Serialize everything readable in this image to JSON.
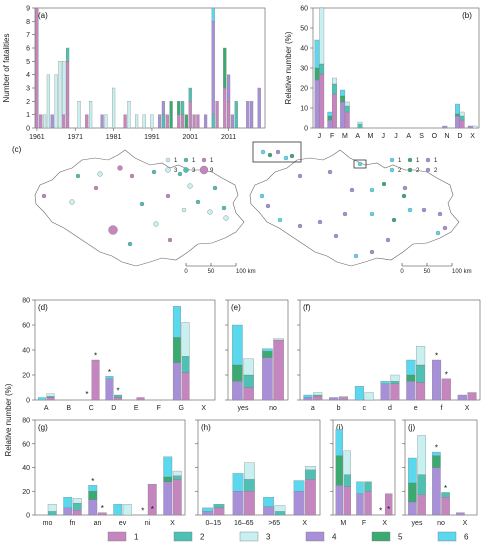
{
  "colors": {
    "1": "#c586c0",
    "2": "#4fc1b4",
    "3": "#c9f0f0",
    "4": "#a890d8",
    "5": "#3aaa70",
    "6": "#5ad8ee"
  },
  "chart_data": [
    {
      "id": "a",
      "type": "bar",
      "panel_label": "(a)",
      "ylabel": "Number of fatalities",
      "ylim": [
        0,
        9
      ],
      "yticks": [
        "0",
        "1",
        "2",
        "3",
        "4",
        "5",
        "6",
        "7",
        "8",
        "9"
      ],
      "xtick_labels": [
        "1961",
        "1971",
        "1981",
        "1991",
        "2001",
        "2011"
      ],
      "xtick_years": [
        1961,
        1971,
        1981,
        1991,
        2001,
        2011
      ],
      "stack_order": [
        "1",
        "2",
        "3",
        "4",
        "5",
        "6"
      ],
      "bars": [
        {
          "year": 1961,
          "1": 9
        },
        {
          "year": 1962,
          "1": 1
        },
        {
          "year": 1963,
          "3": 1
        },
        {
          "year": 1964,
          "3": 4
        },
        {
          "year": 1965,
          "4": 1
        },
        {
          "year": 1966,
          "3": 4
        },
        {
          "year": 1967,
          "3": 5
        },
        {
          "year": 1968,
          "1": 1,
          "3": 4
        },
        {
          "year": 1969,
          "1": 5,
          "2": 1
        },
        {
          "year": 1972,
          "3": 2
        },
        {
          "year": 1974,
          "1": 1
        },
        {
          "year": 1975,
          "3": 2
        },
        {
          "year": 1978,
          "4": 1
        },
        {
          "year": 1979,
          "3": 1
        },
        {
          "year": 1981,
          "3": 3
        },
        {
          "year": 1984,
          "1": 1
        },
        {
          "year": 1985,
          "3": 2
        },
        {
          "year": 1987,
          "3": 1
        },
        {
          "year": 1989,
          "3": 1
        },
        {
          "year": 1991,
          "3": 1
        },
        {
          "year": 1993,
          "4": 1
        },
        {
          "year": 1994,
          "4": 1,
          "2": 1
        },
        {
          "year": 1995,
          "1": 1
        },
        {
          "year": 1996,
          "5": 2
        },
        {
          "year": 1998,
          "1": 1,
          "5": 1
        },
        {
          "year": 1999,
          "1": 1,
          "2": 1
        },
        {
          "year": 2000,
          "5": 1
        },
        {
          "year": 2001,
          "1": 2,
          "2": 1
        },
        {
          "year": 2002,
          "1": 1
        },
        {
          "year": 2003,
          "1": 1
        },
        {
          "year": 2005,
          "4": 1
        },
        {
          "year": 2007,
          "4": 7,
          "2": 1,
          "6": 1
        },
        {
          "year": 2008,
          "1": 2
        },
        {
          "year": 2010,
          "1": 3,
          "5": 3
        },
        {
          "year": 2011,
          "1": 2,
          "4": 2
        },
        {
          "year": 2012,
          "4": 1
        },
        {
          "year": 2013,
          "2": 2
        },
        {
          "year": 2016,
          "4": 2
        },
        {
          "year": 2017,
          "4": 2
        },
        {
          "year": 2019,
          "4": 3
        }
      ]
    },
    {
      "id": "b",
      "type": "bar",
      "panel_label": "(b)",
      "ylabel": "Relative number (%)",
      "ylim": [
        0,
        60
      ],
      "yticks": [
        "0",
        "10",
        "20",
        "30",
        "40",
        "50",
        "60"
      ],
      "stack_order": [
        "4",
        "5",
        "6",
        "1",
        "2",
        "3"
      ],
      "categories": [
        "J",
        "F",
        "M",
        "A",
        "M",
        "J",
        "J",
        "A",
        "S",
        "O",
        "N",
        "D",
        "X"
      ],
      "groups": [
        [
          {
            "4": 24,
            "5": 6,
            "6": 14
          },
          {
            "1": 27,
            "2": 5,
            "3": 32
          }
        ],
        [
          {
            "4": 4,
            "5": 2,
            "6": 2
          },
          {
            "1": 17,
            "2": 5,
            "3": 3
          }
        ],
        [
          {
            "4": 13,
            "5": 3,
            "6": 3
          },
          {
            "1": 8,
            "2": 3,
            "3": 2
          }
        ],
        [
          {
            "4": 0,
            "5": 0,
            "6": 0
          },
          {
            "1": 0,
            "2": 2,
            "3": 1
          }
        ],
        [
          {
            "4": 0,
            "5": 0,
            "6": 0
          },
          {
            "1": 0,
            "2": 0,
            "3": 0
          }
        ],
        [
          {
            "4": 0,
            "5": 0,
            "6": 0
          },
          {
            "1": 0,
            "2": 0,
            "3": 0
          }
        ],
        [
          {
            "4": 0,
            "5": 0,
            "6": 0
          },
          {
            "1": 0,
            "2": 0,
            "3": 0
          }
        ],
        [
          {
            "4": 0,
            "5": 0,
            "6": 0
          },
          {
            "1": 0,
            "2": 0,
            "3": 0
          }
        ],
        [
          {
            "4": 0,
            "5": 0,
            "6": 0
          },
          {
            "1": 0,
            "2": 0,
            "3": 0
          }
        ],
        [
          {
            "4": 0,
            "5": 0,
            "6": 0
          },
          {
            "1": 0,
            "2": 0,
            "3": 0
          }
        ],
        [
          {
            "4": 1,
            "5": 0,
            "6": 0
          },
          {
            "1": 0,
            "2": 0,
            "3": 0
          }
        ],
        [
          {
            "4": 6,
            "5": 1,
            "6": 5
          },
          {
            "1": 4,
            "2": 2,
            "3": 2
          }
        ],
        [
          {
            "4": 1,
            "5": 0,
            "6": 0
          },
          {
            "1": 0,
            "2": 0,
            "3": 1
          }
        ]
      ]
    },
    {
      "id": "d",
      "type": "bar",
      "panel_label": "(d)",
      "ylim": [
        0,
        80
      ],
      "stack_order": [
        "4",
        "5",
        "6",
        "1",
        "2",
        "3"
      ],
      "categories": [
        "A",
        "B",
        "C",
        "D",
        "E",
        "F",
        "G",
        "X"
      ],
      "groups": [
        [
          {
            "4": 0,
            "5": 0,
            "6": 2
          },
          {
            "1": 2,
            "2": 1,
            "3": 2
          }
        ],
        [
          {
            "4": 0,
            "5": 0,
            "6": 0
          },
          {
            "1": 0,
            "2": 0,
            "3": 0
          }
        ],
        [
          {
            "4": 0,
            "5": 0,
            "6": 0
          },
          {
            "1": 32,
            "2": 0,
            "3": 0
          }
        ],
        [
          {
            "4": 17,
            "5": 0,
            "6": 2
          },
          {
            "1": 2,
            "2": 2,
            "3": 0
          }
        ],
        [
          {
            "4": 0,
            "5": 0,
            "6": 0
          },
          {
            "1": 2,
            "2": 0,
            "3": 0
          }
        ],
        [
          {
            "4": 0,
            "5": 0,
            "6": 0
          },
          {
            "1": 0,
            "2": 0,
            "3": 0
          }
        ],
        [
          {
            "4": 30,
            "5": 20,
            "6": 25
          },
          {
            "1": 22,
            "2": 13,
            "3": 27
          }
        ],
        [
          {
            "4": 0,
            "5": 0,
            "6": 0
          },
          {
            "1": 0,
            "2": 0,
            "3": 0
          }
        ]
      ],
      "stars": [
        [
          2,
          1
        ],
        [
          3,
          0
        ],
        [
          3,
          1
        ]
      ],
      "empty_stars": [
        [
          2,
          0
        ]
      ]
    },
    {
      "id": "e",
      "type": "bar",
      "panel_label": "(e)",
      "ylim": [
        0,
        80
      ],
      "stack_order": [
        "4",
        "5",
        "6",
        "1",
        "2",
        "3"
      ],
      "categories": [
        "yes",
        "no"
      ],
      "groups": [
        [
          {
            "4": 15,
            "5": 13,
            "6": 32
          },
          {
            "1": 10,
            "2": 10,
            "3": 13
          }
        ],
        [
          {
            "4": 34,
            "5": 5,
            "6": 2
          },
          {
            "1": 48,
            "2": 0,
            "3": 1
          }
        ]
      ]
    },
    {
      "id": "f",
      "type": "bar",
      "panel_label": "(f)",
      "ylim": [
        0,
        80
      ],
      "stack_order": [
        "4",
        "5",
        "6",
        "1",
        "2",
        "3"
      ],
      "categories": [
        "a",
        "b",
        "c",
        "d",
        "e",
        "f",
        "X"
      ],
      "groups": [
        [
          {
            "4": 2,
            "5": 0,
            "6": 2
          },
          {
            "1": 3,
            "2": 1,
            "3": 2
          }
        ],
        [
          {
            "4": 2,
            "5": 0,
            "6": 0
          },
          {
            "1": 2,
            "2": 0,
            "3": 1
          }
        ],
        [
          {
            "4": 0,
            "5": 0,
            "6": 11
          },
          {
            "1": 0,
            "2": 0,
            "3": 6
          }
        ],
        [
          {
            "4": 13,
            "5": 0,
            "6": 2
          },
          {
            "1": 13,
            "2": 2,
            "3": 5
          }
        ],
        [
          {
            "4": 15,
            "5": 5,
            "6": 12
          },
          {
            "1": 14,
            "2": 14,
            "3": 15
          }
        ],
        [
          {
            "4": 32,
            "5": 0,
            "6": 0
          },
          {
            "1": 17,
            "2": 0,
            "3": 0
          }
        ],
        [
          {
            "4": 4,
            "5": 0,
            "6": 0
          },
          {
            "1": 6,
            "2": 0,
            "3": 0
          }
        ]
      ],
      "stars": [
        [
          5,
          0
        ],
        [
          5,
          1
        ]
      ]
    },
    {
      "id": "g",
      "type": "bar",
      "panel_label": "(g)",
      "ylim": [
        0,
        80
      ],
      "stack_order": [
        "4",
        "5",
        "6",
        "1",
        "2",
        "3"
      ],
      "categories": [
        "mo",
        "fn",
        "an",
        "ev",
        "ni",
        "X"
      ],
      "groups": [
        [
          {
            "4": 0,
            "5": 0,
            "6": 0
          },
          {
            "1": 0,
            "2": 3,
            "3": 6
          }
        ],
        [
          {
            "4": 6,
            "5": 0,
            "6": 9
          },
          {
            "1": 4,
            "2": 6,
            "3": 4
          }
        ],
        [
          {
            "4": 13,
            "5": 7,
            "6": 5
          },
          {
            "1": 2,
            "2": 0,
            "3": 0
          }
        ],
        [
          {
            "4": 0,
            "5": 0,
            "6": 9
          },
          {
            "1": 0,
            "2": 0,
            "3": 9
          }
        ],
        [
          {
            "4": 0,
            "5": 0,
            "6": 0
          },
          {
            "1": 26,
            "2": 0,
            "3": 0
          }
        ],
        [
          {
            "4": 28,
            "5": 4,
            "6": 17
          },
          {
            "1": 30,
            "2": 3,
            "3": 4
          }
        ]
      ],
      "stars": [
        [
          2,
          0
        ],
        [
          2,
          1
        ],
        [
          4,
          0
        ]
      ],
      "empty_stars": [
        [
          4,
          1
        ]
      ]
    },
    {
      "id": "h",
      "type": "bar",
      "panel_label": "(h)",
      "ylim": [
        0,
        80
      ],
      "stack_order": [
        "4",
        "5",
        "6",
        "1",
        "2",
        "3"
      ],
      "categories": [
        "0–15",
        "16–65",
        ">65",
        "X"
      ],
      "groups": [
        [
          {
            "4": 3,
            "5": 0,
            "6": 3
          },
          {
            "1": 6,
            "2": 3,
            "3": 0
          }
        ],
        [
          {
            "4": 20,
            "5": 0,
            "6": 15
          },
          {
            "1": 20,
            "2": 10,
            "3": 14
          }
        ],
        [
          {
            "4": 7,
            "5": 0,
            "6": 8
          },
          {
            "1": 0,
            "2": 3,
            "3": 5
          }
        ],
        [
          {
            "4": 20,
            "5": 0,
            "6": 9
          },
          {
            "1": 30,
            "2": 8,
            "3": 3
          }
        ]
      ]
    },
    {
      "id": "i",
      "type": "bar",
      "panel_label": "(i)",
      "ylim": [
        0,
        80
      ],
      "stack_order": [
        "4",
        "5",
        "6",
        "1",
        "2",
        "3"
      ],
      "categories": [
        "M",
        "F",
        "X"
      ],
      "groups": [
        [
          {
            "4": 25,
            "5": 25,
            "6": 22
          },
          {
            "1": 24,
            "2": 10,
            "3": 20
          }
        ],
        [
          {
            "4": 18,
            "5": 0,
            "6": 10
          },
          {
            "1": 20,
            "2": 8,
            "3": 0
          }
        ],
        [
          {
            "4": 0,
            "5": 0,
            "6": 0
          },
          {
            "1": 18,
            "2": 0,
            "3": 0
          }
        ]
      ],
      "stars": [
        [
          2,
          0
        ]
      ],
      "empty_stars": [
        [
          2,
          1
        ]
      ]
    },
    {
      "id": "j",
      "type": "bar",
      "panel_label": "(j)",
      "ylim": [
        0,
        80
      ],
      "stack_order": [
        "4",
        "5",
        "6",
        "1",
        "2",
        "3"
      ],
      "categories": [
        "yes",
        "no",
        "X"
      ],
      "groups": [
        [
          {
            "4": 11,
            "5": 16,
            "6": 21
          },
          {
            "1": 17,
            "2": 17,
            "3": 33
          }
        ],
        [
          {
            "4": 40,
            "5": 10,
            "6": 3
          },
          {
            "1": 15,
            "2": 4,
            "3": 0
          }
        ],
        [
          {
            "4": 2,
            "5": 0,
            "6": 0
          },
          {
            "1": 0,
            "2": 0,
            "3": 0
          }
        ]
      ],
      "stars": [
        [
          1,
          0
        ],
        [
          1,
          1
        ]
      ]
    }
  ],
  "panel_c": {
    "label": "(c)",
    "scale_ticks": [
      "0",
      "50",
      "100 km"
    ],
    "legend_left": [
      {
        "sym": "3",
        "num": "1"
      },
      {
        "sym": "2",
        "num": "1"
      },
      {
        "sym": "1",
        "num": "1"
      },
      {
        "sym": "3",
        "num": "3"
      },
      {
        "sym": "2",
        "num": "3"
      },
      {
        "sym": "1",
        "num": "9"
      }
    ],
    "legend_right": [
      {
        "sym": "6",
        "num": "1"
      },
      {
        "sym": "5",
        "num": "1"
      },
      {
        "sym": "4",
        "num": "1"
      },
      {
        "sym": "6",
        "num": "2"
      },
      {
        "sym": "5",
        "num": "2"
      },
      {
        "sym": "4",
        "num": "2"
      }
    ]
  },
  "shared": {
    "ylabel_bottom": "Relative number (%)",
    "yticks_bottom": [
      "0",
      "20",
      "40",
      "60",
      "80"
    ]
  },
  "legend": {
    "items": [
      {
        "key": "1",
        "label": "1"
      },
      {
        "key": "2",
        "label": "2"
      },
      {
        "key": "3",
        "label": "3"
      },
      {
        "key": "4",
        "label": "4"
      },
      {
        "key": "5",
        "label": "5"
      },
      {
        "key": "6",
        "label": "6"
      }
    ]
  }
}
